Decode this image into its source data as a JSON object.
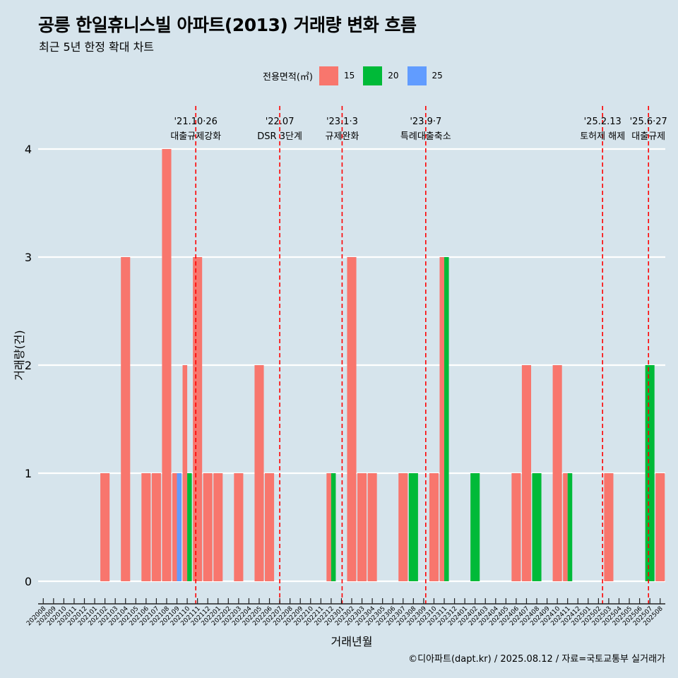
{
  "title": "공릉 한일휴니스빌 아파트(2013) 거래량 변화 흐름",
  "subtitle": "최근 5년 한정 확대 차트",
  "caption": "©디아파트(dapt.kr) / 2025.08.12 / 자료=국토교통부 실거래가",
  "legend": {
    "title": "전용면적(㎡)",
    "items": [
      {
        "label": "15",
        "color": "#f8766d"
      },
      {
        "label": "20",
        "color": "#00ba38"
      },
      {
        "label": "25",
        "color": "#619cff"
      }
    ]
  },
  "chart_data": {
    "type": "bar",
    "xlabel": "거래년월",
    "ylabel": "거래량(건)",
    "ylim": [
      0,
      4
    ],
    "yticks": [
      0,
      1,
      2,
      3,
      4
    ],
    "grid": "horizontal",
    "legend_position": "top",
    "categories": [
      "202008",
      "202009",
      "202010",
      "202011",
      "202012",
      "202101",
      "202102",
      "202103",
      "202104",
      "202105",
      "202106",
      "202107",
      "202108",
      "202109",
      "202110",
      "202111",
      "202112",
      "202201",
      "202202",
      "202203",
      "202204",
      "202205",
      "202206",
      "202207",
      "202208",
      "202209",
      "202210",
      "202211",
      "202212",
      "202301",
      "202302",
      "202303",
      "202304",
      "202305",
      "202306",
      "202307",
      "202308",
      "202309",
      "202310",
      "202311",
      "202312",
      "202401",
      "202402",
      "202403",
      "202404",
      "202405",
      "202406",
      "202407",
      "202408",
      "202409",
      "202410",
      "202411",
      "202412",
      "202501",
      "202502",
      "202503",
      "202504",
      "202505",
      "202506",
      "202507",
      "202508"
    ],
    "series": [
      {
        "name": "15",
        "color": "#f8766d",
        "values": [
          0,
          0,
          0,
          0,
          0,
          0,
          1,
          0,
          3,
          0,
          1,
          1,
          4,
          1,
          2,
          3,
          1,
          1,
          0,
          1,
          0,
          2,
          1,
          0,
          0,
          0,
          0,
          0,
          1,
          0,
          3,
          1,
          1,
          0,
          0,
          1,
          0,
          0,
          1,
          3,
          0,
          0,
          0,
          0,
          0,
          0,
          1,
          2,
          0,
          0,
          2,
          1,
          0,
          0,
          0,
          1,
          0,
          0,
          0,
          0,
          1
        ]
      },
      {
        "name": "20",
        "color": "#00ba38",
        "values": [
          0,
          0,
          0,
          0,
          0,
          0,
          0,
          0,
          0,
          0,
          0,
          0,
          0,
          0,
          1,
          0,
          0,
          0,
          0,
          0,
          0,
          0,
          0,
          0,
          0,
          0,
          0,
          0,
          1,
          0,
          0,
          0,
          0,
          0,
          0,
          0,
          1,
          0,
          0,
          3,
          0,
          0,
          1,
          0,
          0,
          0,
          0,
          0,
          1,
          0,
          0,
          1,
          0,
          0,
          0,
          0,
          0,
          0,
          0,
          2,
          0
        ]
      },
      {
        "name": "25",
        "color": "#619cff",
        "values": [
          0,
          0,
          0,
          0,
          0,
          0,
          0,
          0,
          0,
          0,
          0,
          0,
          0,
          1,
          0,
          0,
          0,
          0,
          0,
          0,
          0,
          0,
          0,
          0,
          0,
          0,
          0,
          0,
          0,
          0,
          0,
          0,
          0,
          0,
          0,
          0,
          0,
          0,
          0,
          0,
          0,
          0,
          0,
          0,
          0,
          0,
          0,
          0,
          0,
          0,
          0,
          0,
          0,
          0,
          0,
          0,
          0,
          0,
          0,
          0,
          0
        ]
      }
    ],
    "annotations": [
      {
        "date": "2021-10-26",
        "line1": "'21.10·26",
        "line2": "대출규제강화"
      },
      {
        "date": "2022-07",
        "line1": "'22.07",
        "line2": "DSR 3단계"
      },
      {
        "date": "2023-01-03",
        "line1": "'23.1·3",
        "line2": "규제완화"
      },
      {
        "date": "2023-09-07",
        "line1": "'23.9·7",
        "line2": "특례대출축소"
      },
      {
        "date": "2025-02-13",
        "line1": "'25.2.13",
        "line2": "토허제 해제"
      },
      {
        "date": "2025-06-27",
        "line1": "'25.6·27",
        "line2": "대출규제"
      }
    ]
  }
}
